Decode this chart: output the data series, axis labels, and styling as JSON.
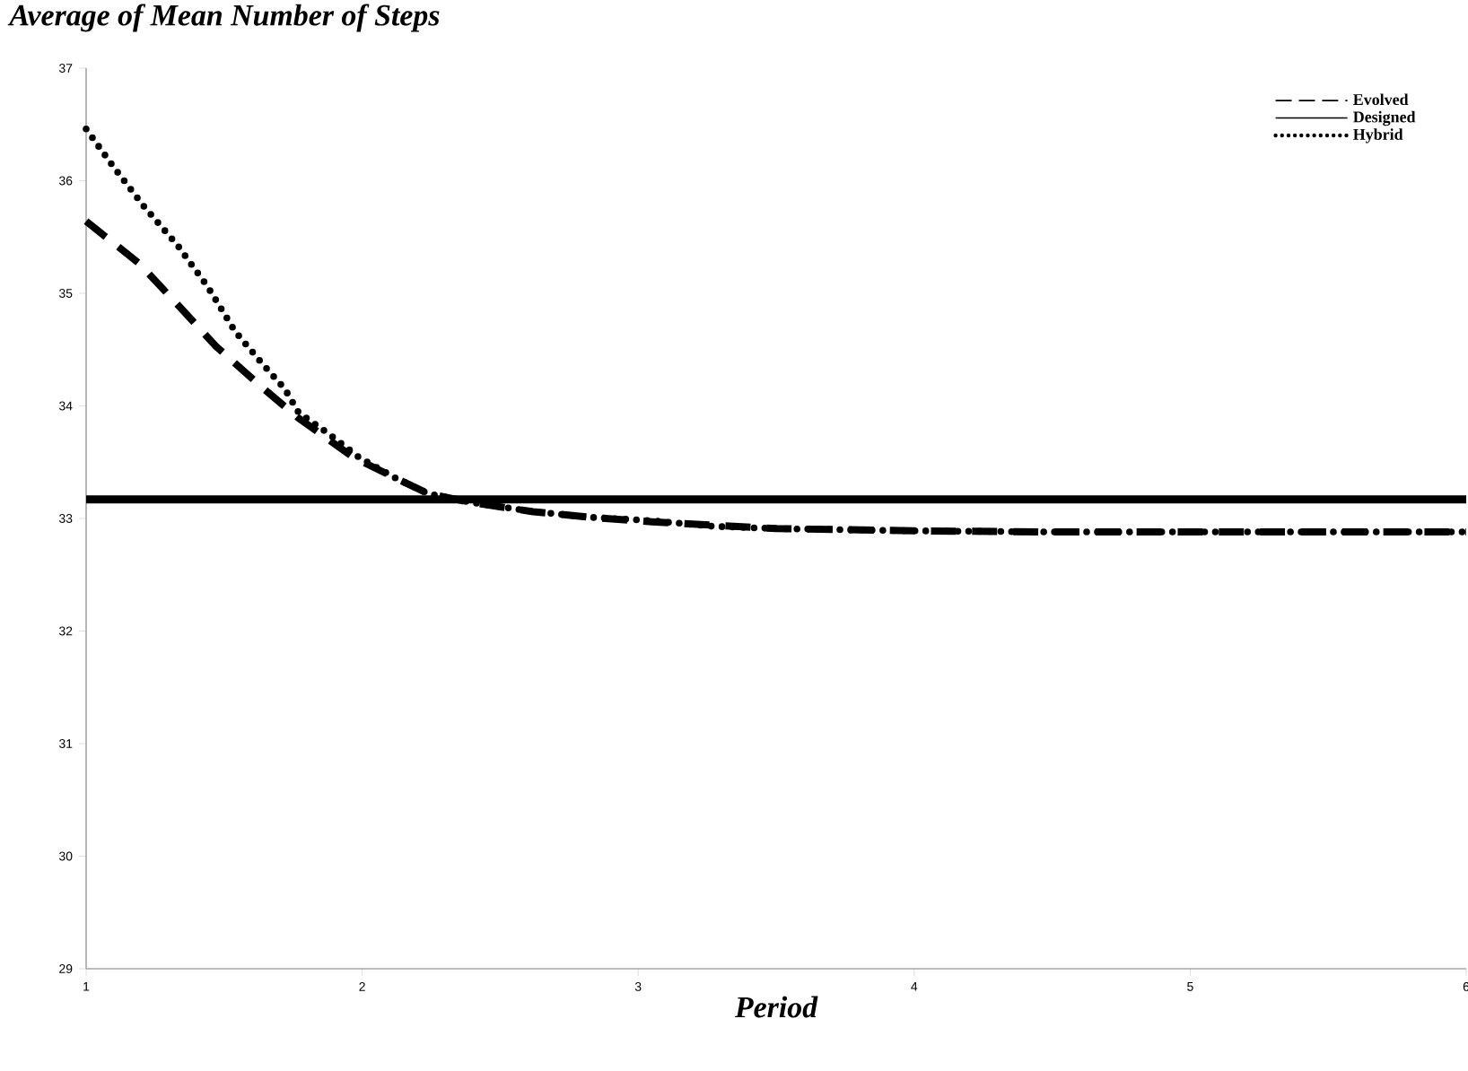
{
  "chart_data": {
    "type": "line",
    "title": "Average of Mean Number of Steps",
    "xlabel": "Period",
    "xlim": [
      1,
      6
    ],
    "ylim": [
      29,
      37
    ],
    "xticks": [
      1,
      2,
      3,
      4,
      5,
      6
    ],
    "yticks": [
      29,
      30,
      31,
      32,
      33,
      34,
      35,
      36,
      37
    ],
    "grid": false,
    "legend": "top right",
    "marker": "none",
    "series": [
      {
        "name": "Evolved",
        "color": "#000000",
        "line_style": "dashed",
        "x": [
          1,
          1.19,
          1.32,
          1.47,
          1.63,
          1.77,
          1.97,
          2.12,
          2.24,
          2.4,
          2.62,
          2.83,
          3.05,
          3.5,
          4,
          4.5,
          5,
          5.5,
          6
        ],
        "values": [
          35.64,
          35.27,
          34.93,
          34.53,
          34.18,
          33.89,
          33.54,
          33.36,
          33.22,
          33.14,
          33.06,
          33.01,
          32.97,
          32.91,
          32.89,
          32.88,
          32.88,
          32.88,
          32.88
        ]
      },
      {
        "name": "Designed",
        "color": "#000000",
        "line_style": "solid",
        "x": [
          1,
          6
        ],
        "values": [
          33.17,
          33.17
        ]
      },
      {
        "name": "Hybrid",
        "color": "#000000",
        "line_style": "dotted",
        "x": [
          1,
          1.1,
          1.21,
          1.33,
          1.44,
          1.54,
          1.64,
          1.72,
          1.77,
          1.88,
          1.99,
          2.12,
          2.24,
          2.4,
          2.62,
          2.83,
          3.05,
          3.27,
          3.5,
          4,
          4.5,
          5,
          5.5,
          6
        ],
        "values": [
          36.46,
          36.12,
          35.77,
          35.43,
          35.06,
          34.66,
          34.37,
          34.15,
          33.94,
          33.75,
          33.54,
          33.36,
          33.22,
          33.14,
          33.06,
          33.01,
          32.98,
          32.93,
          32.91,
          32.89,
          32.88,
          32.88,
          32.88,
          32.88
        ]
      }
    ]
  }
}
